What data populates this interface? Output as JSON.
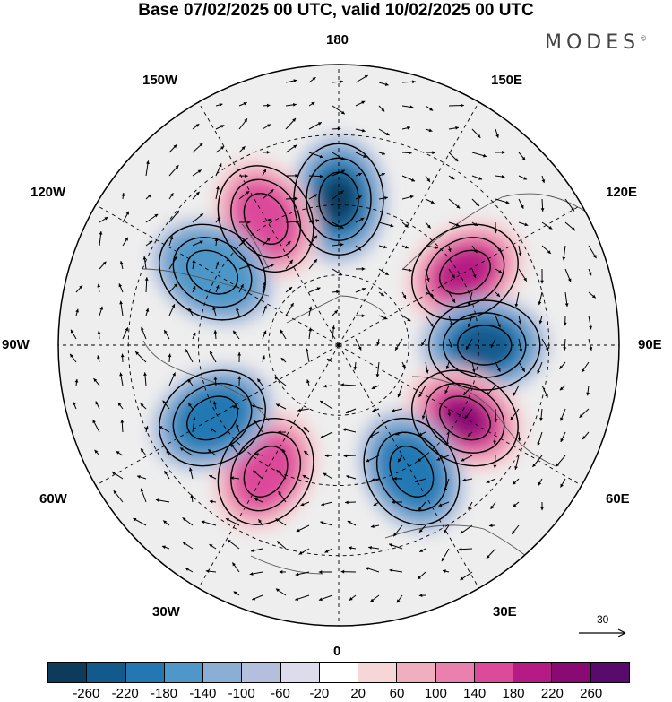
{
  "title": "Base 07/02/2025 00 UTC, valid 10/02/2025 00 UTC",
  "brand": "MODES",
  "brand_mark": "©",
  "longitude_labels": {
    "top": "180",
    "bottom": "0",
    "left": "90W",
    "right": "90E",
    "upper_left_1": "150W",
    "upper_left_2": "120W",
    "upper_right_1": "150E",
    "upper_right_2": "120E",
    "lower_left_1": "60W",
    "lower_left_2": "30W",
    "lower_right_1": "60E",
    "lower_right_2": "30E"
  },
  "reference_vector": {
    "value": "30"
  },
  "colorbar": {
    "tick_labels": [
      "-260",
      "-220",
      "-180",
      "-140",
      "-100",
      "-60",
      "-20",
      "20",
      "60",
      "100",
      "140",
      "180",
      "220",
      "260"
    ],
    "colors": [
      "#0d3b5c",
      "#125a8c",
      "#2378b3",
      "#4e97c8",
      "#8aaed4",
      "#b3bfdc",
      "#dcdcec",
      "#ffffff",
      "#f6d6d6",
      "#f0aebe",
      "#ea80ae",
      "#dc4a9a",
      "#b61a84",
      "#8a0a74",
      "#5a0a6c"
    ]
  },
  "anomaly_centers": [
    {
      "lon_label": "180",
      "sign": "negative",
      "strength": -240
    },
    {
      "lon_label": "150W",
      "sign": "positive",
      "strength": 160
    },
    {
      "lon_label": "120E",
      "sign": "positive",
      "strength": 220
    },
    {
      "lon_label": "90E",
      "sign": "negative",
      "strength": -220
    },
    {
      "lon_label": "60E",
      "sign": "positive",
      "strength": 240
    },
    {
      "lon_label": "30E",
      "sign": "negative",
      "strength": -160
    },
    {
      "lon_label": "30W",
      "sign": "positive",
      "strength": 180
    },
    {
      "lon_label": "60W",
      "sign": "negative",
      "strength": -160
    },
    {
      "lon_label": "120W",
      "sign": "negative",
      "strength": -120
    }
  ]
}
